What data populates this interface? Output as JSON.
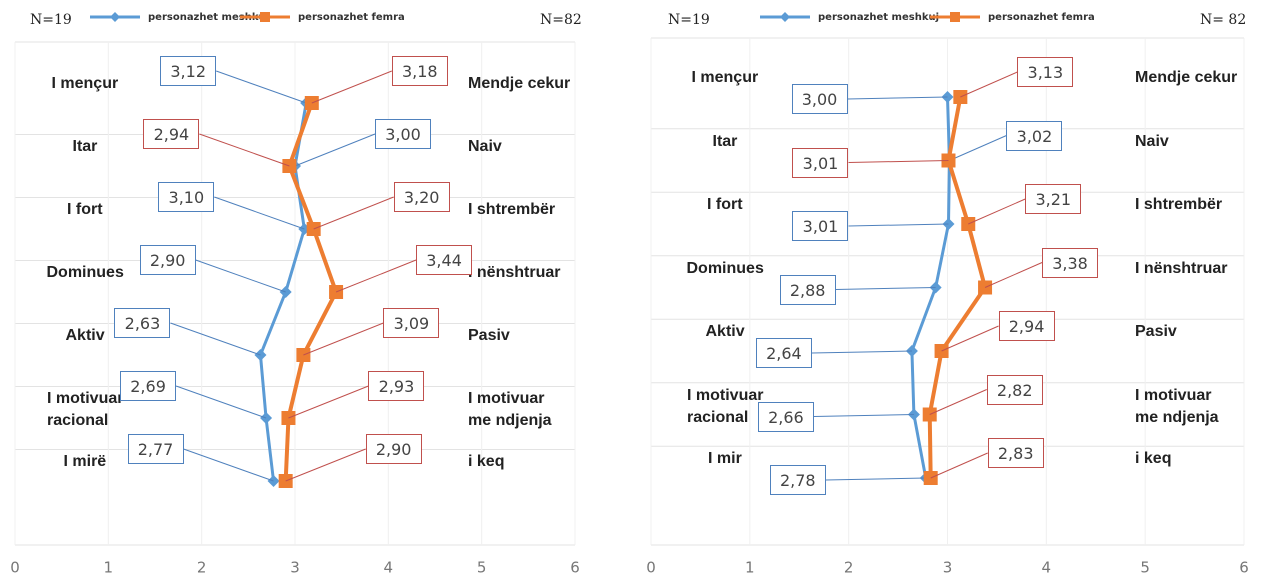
{
  "chart_data": [
    {
      "type": "profile-line",
      "xlim": [
        0,
        6
      ],
      "xticks": [
        0,
        1,
        2,
        3,
        4,
        5,
        6
      ],
      "left_labels": [
        "I mençur",
        "Itar",
        "I fort",
        "Dominues",
        "Aktiv",
        "I motivuar\nracional",
        "I mirë"
      ],
      "right_labels": [
        "Mendje cekur",
        "Naiv",
        "I shtrembër",
        "I nënshtruar",
        "Pasiv",
        "I motivuar\nme ndjenja",
        "i keq"
      ],
      "series": [
        {
          "name": "personazhet meshkuj",
          "sample": "N=19",
          "color": "#5b9bd5",
          "values": [
            3.12,
            3.0,
            3.1,
            2.9,
            2.63,
            2.69,
            2.77
          ],
          "value_labels": [
            "3,12",
            "3,00",
            "3,10",
            "2,90",
            "2,63",
            "2,69",
            "2,77"
          ]
        },
        {
          "name": "personazhet femra",
          "sample": "N=82",
          "color": "#ed7d31",
          "values": [
            3.18,
            2.94,
            3.2,
            3.44,
            3.09,
            2.93,
            2.9
          ],
          "value_labels": [
            "3,18",
            "2,94",
            "3,20",
            "3,44",
            "3,09",
            "2,93",
            "2,90"
          ]
        }
      ]
    },
    {
      "type": "profile-line",
      "xlim": [
        0,
        6
      ],
      "xticks": [
        0,
        1,
        2,
        3,
        4,
        5,
        6
      ],
      "left_labels": [
        "I mençur",
        "Itar",
        "I fort",
        "Dominues",
        "Aktiv",
        "I motivuar\nracional",
        "I mir"
      ],
      "right_labels": [
        "Mendje cekur",
        "Naiv",
        "I shtrembër",
        "I nënshtruar",
        "Pasiv",
        "I motivuar\nme ndjenja",
        "i keq"
      ],
      "series": [
        {
          "name": "personazhet meshkuj",
          "sample": "N=19",
          "color": "#5b9bd5",
          "values": [
            3.0,
            3.02,
            3.01,
            2.88,
            2.64,
            2.66,
            2.78
          ],
          "value_labels": [
            "3,00",
            "3,02",
            "3,01",
            "2,88",
            "2,64",
            "2,66",
            "2,78"
          ]
        },
        {
          "name": "personazhet femra",
          "sample": "N= 82",
          "color": "#ed7d31",
          "values": [
            3.13,
            3.01,
            3.21,
            3.38,
            2.94,
            2.82,
            2.83
          ],
          "value_labels": [
            "3,13",
            "3,01",
            "3,21",
            "3,38",
            "2,94",
            "2,82",
            "2,83"
          ]
        }
      ]
    }
  ]
}
